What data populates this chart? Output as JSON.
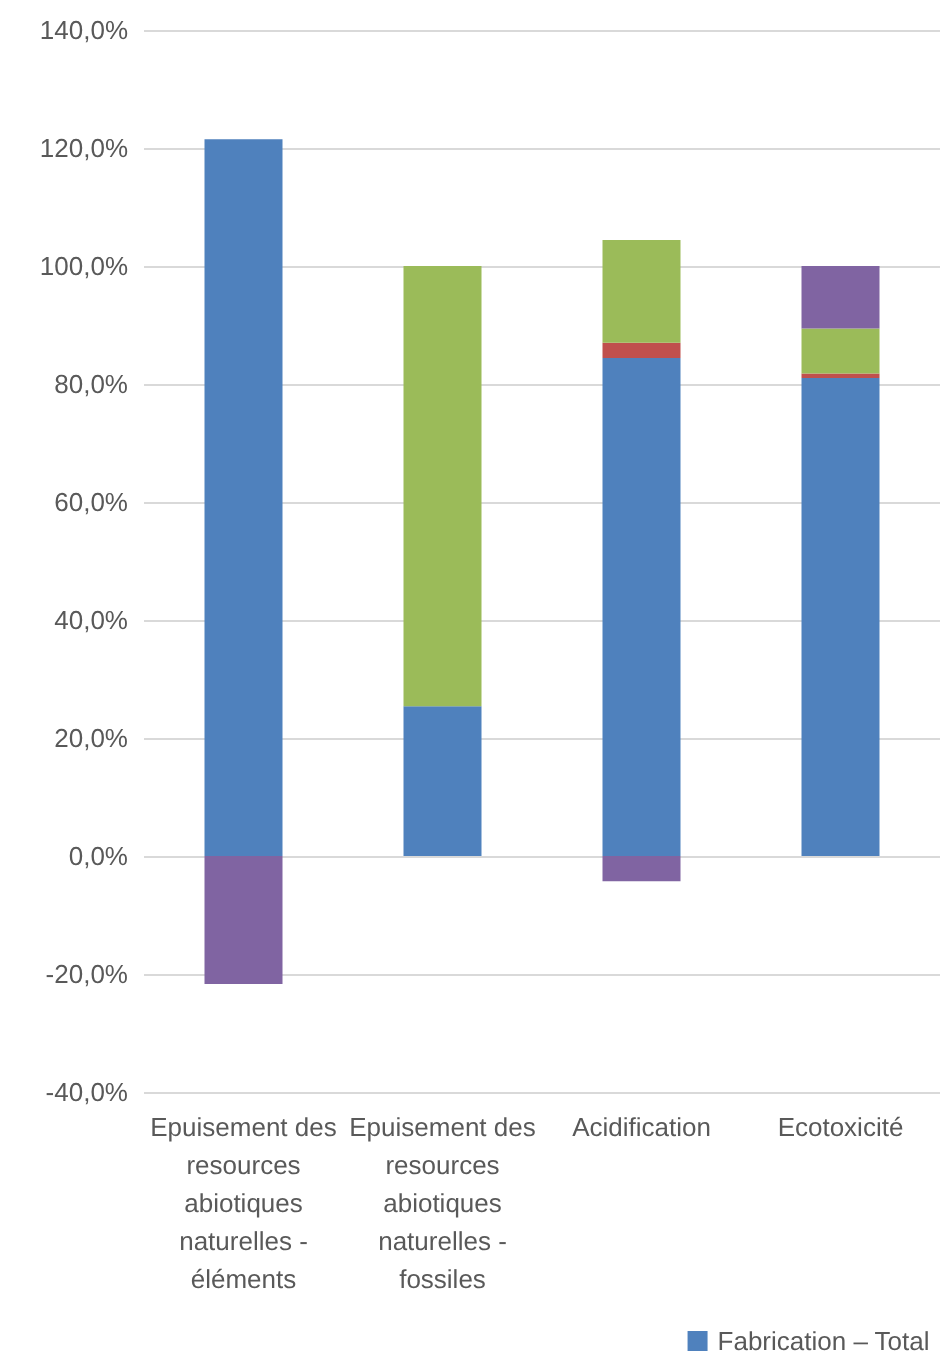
{
  "chart_data": {
    "type": "bar",
    "stacked": true,
    "categories": [
      "Epuisement des resources abiotiques naturelles - éléments",
      "Epuisement des resources abiotiques naturelles - fossiles",
      "Acidification",
      "Ecotoxicité"
    ],
    "series": [
      {
        "name": "Fabrication – Total",
        "color": "#4f81bd",
        "values": [
          121.5,
          25.4,
          84.4,
          81.0
        ]
      },
      {
        "color": "#c0504d",
        "values": [
          null,
          null,
          2.6,
          0.8
        ]
      },
      {
        "color": "#9bbb59",
        "values": [
          null,
          74.6,
          17.4,
          7.6
        ]
      },
      {
        "color": "#8064a2",
        "values": [
          -21.7,
          null,
          -4.3,
          10.6
        ]
      }
    ],
    "ylim": [
      -40,
      140
    ],
    "yticks": [
      {
        "value": -40,
        "label": "-40,0%"
      },
      {
        "value": -20,
        "label": "-20,0%"
      },
      {
        "value": 0,
        "label": "0,0%"
      },
      {
        "value": 20,
        "label": "20,0%"
      },
      {
        "value": 40,
        "label": "40,0%"
      },
      {
        "value": 60,
        "label": "60,0%"
      },
      {
        "value": 80,
        "label": "80,0%"
      },
      {
        "value": 100,
        "label": "100,0%"
      },
      {
        "value": 120,
        "label": "120,0%"
      },
      {
        "value": 140,
        "label": "140,0%"
      }
    ],
    "grid": "y",
    "legend": "bottom right"
  }
}
